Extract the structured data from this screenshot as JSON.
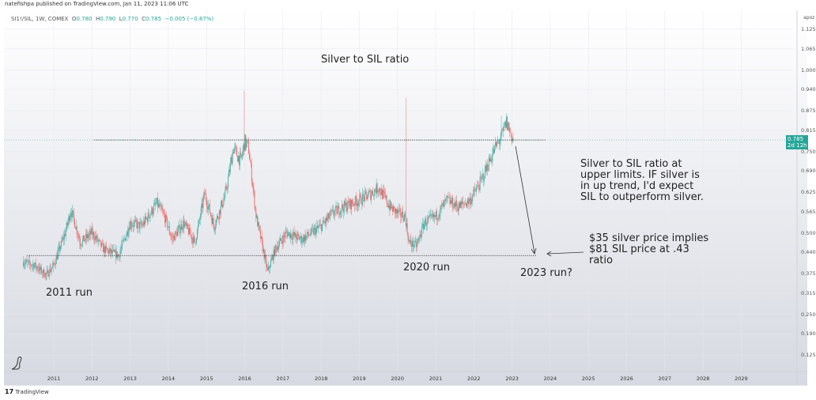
{
  "header": {
    "publisher": "natefishpa published on TradingView.com, Jan 11, 2023 11:06 UTC"
  },
  "legend": {
    "symbol": "SI1!/SIL, 1W, COMEX",
    "open_label": "O",
    "open": "0.780",
    "high_label": "H",
    "high": "0.790",
    "low_label": "L",
    "low": "0.770",
    "close_label": "C",
    "close": "0.785",
    "change": "−0.005 (−0.87%)"
  },
  "price_axis": {
    "unit": "apoz",
    "last_price": "0.785",
    "countdown": "2d 12h"
  },
  "annotations": {
    "title": "Silver to SIL ratio",
    "run_2011": "2011 run",
    "run_2016": "2016 run",
    "run_2020": "2020 run",
    "run_2023": "2023 run?",
    "upper_note": [
      "Silver to SIL ratio at",
      "upper limits.  IF silver is",
      "in up trend, I'd expect",
      "SIL to outperform silver."
    ],
    "lower_note": [
      "$35 silver price implies",
      "$81 SIL price at .43",
      "ratio"
    ]
  },
  "footer": {
    "brand": "TradingView"
  },
  "colors": {
    "up": "#26a69a",
    "down": "#ef5350",
    "line": "#333333"
  },
  "chart_data": {
    "type": "candlestick",
    "title": "Silver to SIL ratio",
    "symbol": "SI1!/SIL",
    "interval": "1W",
    "y_ticks": [
      "1.125",
      "1.065",
      "1.000",
      "0.940",
      "0.875",
      "0.815",
      "0.750",
      "0.690",
      "0.625",
      "0.565",
      "0.500",
      "0.440",
      "0.375",
      "0.315",
      "0.250",
      "0.190",
      "0.125"
    ],
    "x_ticks": [
      "2011",
      "2012",
      "2013",
      "2014",
      "2015",
      "2016",
      "2017",
      "2018",
      "2019",
      "2020",
      "2021",
      "2022",
      "2023",
      "2024",
      "2025",
      "2026",
      "2027",
      "2028",
      "2029"
    ],
    "ylim": [
      0.1,
      1.16
    ],
    "xlim": [
      2009.7,
      2030.3
    ],
    "path": [
      [
        2010.2,
        0.41
      ],
      [
        2010.5,
        0.4
      ],
      [
        2010.8,
        0.37
      ],
      [
        2011.0,
        0.4
      ],
      [
        2011.3,
        0.5
      ],
      [
        2011.45,
        0.57
      ],
      [
        2011.7,
        0.47
      ],
      [
        2012.0,
        0.5
      ],
      [
        2012.3,
        0.45
      ],
      [
        2012.7,
        0.43
      ],
      [
        2013.0,
        0.53
      ],
      [
        2013.3,
        0.52
      ],
      [
        2013.7,
        0.59
      ],
      [
        2013.9,
        0.55
      ],
      [
        2014.1,
        0.48
      ],
      [
        2014.4,
        0.53
      ],
      [
        2014.7,
        0.47
      ],
      [
        2014.95,
        0.62
      ],
      [
        2015.2,
        0.52
      ],
      [
        2015.5,
        0.62
      ],
      [
        2015.7,
        0.76
      ],
      [
        2015.9,
        0.72
      ],
      [
        2016.0,
        0.78
      ],
      [
        2016.1,
        0.76
      ],
      [
        2016.3,
        0.55
      ],
      [
        2016.6,
        0.38
      ],
      [
        2016.8,
        0.45
      ],
      [
        2017.1,
        0.5
      ],
      [
        2017.5,
        0.48
      ],
      [
        2018.0,
        0.52
      ],
      [
        2018.3,
        0.56
      ],
      [
        2018.6,
        0.58
      ],
      [
        2019.0,
        0.6
      ],
      [
        2019.3,
        0.62
      ],
      [
        2019.5,
        0.64
      ],
      [
        2019.8,
        0.58
      ],
      [
        2020.0,
        0.56
      ],
      [
        2020.2,
        0.55
      ],
      [
        2020.3,
        0.47
      ],
      [
        2020.5,
        0.46
      ],
      [
        2020.7,
        0.53
      ],
      [
        2021.0,
        0.55
      ],
      [
        2021.3,
        0.6
      ],
      [
        2021.6,
        0.58
      ],
      [
        2021.9,
        0.6
      ],
      [
        2022.2,
        0.66
      ],
      [
        2022.4,
        0.72
      ],
      [
        2022.6,
        0.77
      ],
      [
        2022.75,
        0.8
      ],
      [
        2022.85,
        0.84
      ],
      [
        2023.03,
        0.785
      ]
    ],
    "spikes": [
      [
        2015.98,
        0.936
      ],
      [
        2020.22,
        0.915
      ],
      [
        2022.72,
        0.86
      ],
      [
        2022.88,
        0.855
      ]
    ],
    "last_close": 0.785,
    "horizontal_levels": [
      {
        "value": 0.785,
        "from": 2012.05,
        "to": 2023.9
      },
      {
        "value": 0.43,
        "from": 2010.3,
        "to": 2023.65
      }
    ]
  }
}
